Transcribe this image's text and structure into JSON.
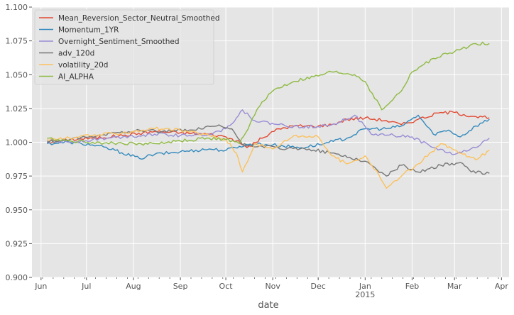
{
  "chart_data": {
    "type": "line",
    "xlabel": "date",
    "ylabel": "",
    "ylim": [
      0.9,
      1.1
    ],
    "xlim": [
      "2014-05-26",
      "2015-04-06"
    ],
    "grid": true,
    "legend_position": "top-left",
    "y_ticks": [
      "0.900",
      "0.925",
      "0.950",
      "0.975",
      "1.000",
      "1.025",
      "1.050",
      "1.075",
      "1.100"
    ],
    "y_tick_values": [
      0.9,
      0.925,
      0.95,
      0.975,
      1.0,
      1.025,
      1.05,
      1.075,
      1.1
    ],
    "x_ticks": [
      {
        "date": "2014-06-01",
        "label": "Jun",
        "sub": ""
      },
      {
        "date": "2014-07-01",
        "label": "Jul",
        "sub": ""
      },
      {
        "date": "2014-08-01",
        "label": "Aug",
        "sub": ""
      },
      {
        "date": "2014-09-01",
        "label": "Sep",
        "sub": ""
      },
      {
        "date": "2014-10-01",
        "label": "Oct",
        "sub": ""
      },
      {
        "date": "2014-11-01",
        "label": "Nov",
        "sub": ""
      },
      {
        "date": "2014-12-01",
        "label": "Dec",
        "sub": ""
      },
      {
        "date": "2015-01-01",
        "label": "Jan",
        "sub": "2015"
      },
      {
        "date": "2015-02-01",
        "label": "Feb",
        "sub": ""
      },
      {
        "date": "2015-03-01",
        "label": "Mar",
        "sub": ""
      },
      {
        "date": "2015-04-01",
        "label": "Apr",
        "sub": ""
      }
    ],
    "series": [
      {
        "name": "Mean_Reversion_Sector_Neutral_Smoothed",
        "color": "#E24A33",
        "x": [
          "2014-06-05",
          "2014-06-20",
          "2014-07-05",
          "2014-07-25",
          "2014-08-15",
          "2014-09-01",
          "2014-09-20",
          "2014-10-01",
          "2014-10-08",
          "2014-10-15",
          "2014-10-25",
          "2014-11-05",
          "2014-11-15",
          "2014-12-01",
          "2014-12-10",
          "2014-12-20",
          "2015-01-01",
          "2015-01-15",
          "2015-01-25",
          "2015-02-05",
          "2015-02-20",
          "2015-03-01",
          "2015-03-15",
          "2015-03-24"
        ],
        "y": [
          1.0,
          1.002,
          1.003,
          1.005,
          1.008,
          1.007,
          1.006,
          1.004,
          1.001,
          0.996,
          1.003,
          1.01,
          1.012,
          1.012,
          1.013,
          1.017,
          1.018,
          1.016,
          1.013,
          1.017,
          1.022,
          1.022,
          1.019,
          1.018
        ]
      },
      {
        "name": "Momentum_1YR",
        "color": "#348ABD",
        "x": [
          "2014-06-05",
          "2014-06-20",
          "2014-07-05",
          "2014-07-20",
          "2014-08-05",
          "2014-08-15",
          "2014-09-01",
          "2014-09-20",
          "2014-10-01",
          "2014-10-10",
          "2014-10-20",
          "2014-11-01",
          "2014-11-20",
          "2014-12-05",
          "2014-12-20",
          "2015-01-01",
          "2015-01-15",
          "2015-01-25",
          "2015-02-05",
          "2015-02-15",
          "2015-02-25",
          "2015-03-05",
          "2015-03-15",
          "2015-03-24"
        ],
        "y": [
          0.999,
          1.0,
          0.998,
          0.994,
          0.988,
          0.991,
          0.993,
          0.995,
          0.994,
          0.997,
          0.999,
          0.998,
          0.996,
          0.999,
          1.003,
          1.01,
          1.01,
          1.012,
          1.02,
          1.006,
          1.009,
          1.004,
          1.012,
          1.017
        ]
      },
      {
        "name": "Overnight_Sentiment_Smoothed",
        "color": "#988ED5",
        "x": [
          "2014-06-05",
          "2014-06-20",
          "2014-07-05",
          "2014-07-25",
          "2014-08-15",
          "2014-09-01",
          "2014-09-20",
          "2014-10-01",
          "2014-10-08",
          "2014-10-12",
          "2014-10-20",
          "2014-11-05",
          "2014-11-20",
          "2014-12-10",
          "2014-12-25",
          "2015-01-05",
          "2015-01-20",
          "2015-02-01",
          "2015-02-15",
          "2015-03-01",
          "2015-03-15",
          "2015-03-24"
        ],
        "y": [
          1.001,
          1.0,
          1.002,
          1.004,
          1.006,
          1.005,
          1.006,
          1.01,
          1.018,
          1.024,
          1.016,
          1.013,
          1.011,
          1.013,
          1.02,
          1.006,
          1.005,
          1.004,
          0.996,
          0.991,
          0.996,
          1.003
        ]
      },
      {
        "name": "adv_120d",
        "color": "#777777",
        "x": [
          "2014-06-05",
          "2014-06-20",
          "2014-07-05",
          "2014-07-20",
          "2014-08-05",
          "2014-08-20",
          "2014-09-10",
          "2014-09-25",
          "2014-10-05",
          "2014-10-12",
          "2014-10-25",
          "2014-11-10",
          "2014-11-25",
          "2014-12-10",
          "2015-01-01",
          "2015-01-15",
          "2015-01-25",
          "2015-02-05",
          "2015-02-20",
          "2015-03-05",
          "2015-03-12",
          "2015-03-24"
        ],
        "y": [
          1.0,
          1.002,
          1.004,
          1.007,
          1.009,
          1.008,
          1.009,
          1.012,
          1.01,
          0.998,
          0.997,
          0.995,
          0.995,
          0.992,
          0.986,
          0.975,
          0.983,
          0.978,
          0.983,
          0.985,
          0.978,
          0.977
        ]
      },
      {
        "name": "volatility_20d",
        "color": "#FBC15E",
        "x": [
          "2014-06-05",
          "2014-06-20",
          "2014-07-05",
          "2014-07-25",
          "2014-08-15",
          "2014-09-01",
          "2014-09-20",
          "2014-10-01",
          "2014-10-08",
          "2014-10-12",
          "2014-10-20",
          "2014-11-01",
          "2014-11-15",
          "2014-12-01",
          "2014-12-10",
          "2014-12-20",
          "2015-01-01",
          "2015-01-10",
          "2015-01-15",
          "2015-01-25",
          "2015-02-05",
          "2015-02-20",
          "2015-03-05",
          "2015-03-15",
          "2015-03-24"
        ],
        "y": [
          1.002,
          1.003,
          1.005,
          1.007,
          1.01,
          1.009,
          1.005,
          1.002,
          0.992,
          0.978,
          0.999,
          0.995,
          1.005,
          1.004,
          0.99,
          0.984,
          0.99,
          0.976,
          0.966,
          0.975,
          0.984,
          0.999,
          0.992,
          0.987,
          0.994
        ]
      },
      {
        "name": "AI_ALPHA",
        "color": "#8EBA42",
        "x": [
          "2014-06-05",
          "2014-06-20",
          "2014-07-05",
          "2014-07-25",
          "2014-08-15",
          "2014-09-01",
          "2014-09-20",
          "2014-10-01",
          "2014-10-10",
          "2014-10-20",
          "2014-10-25",
          "2014-11-01",
          "2014-11-15",
          "2014-12-01",
          "2014-12-10",
          "2014-12-25",
          "2015-01-01",
          "2015-01-12",
          "2015-01-15",
          "2015-01-25",
          "2015-02-01",
          "2015-02-15",
          "2015-03-01",
          "2015-03-15",
          "2015-03-24"
        ],
        "y": [
          1.003,
          1.001,
          1.0,
          0.999,
          0.999,
          1.001,
          1.003,
          1.002,
          0.999,
          1.02,
          1.03,
          1.038,
          1.045,
          1.049,
          1.052,
          1.05,
          1.045,
          1.024,
          1.027,
          1.038,
          1.052,
          1.062,
          1.067,
          1.073,
          1.073
        ]
      }
    ]
  }
}
